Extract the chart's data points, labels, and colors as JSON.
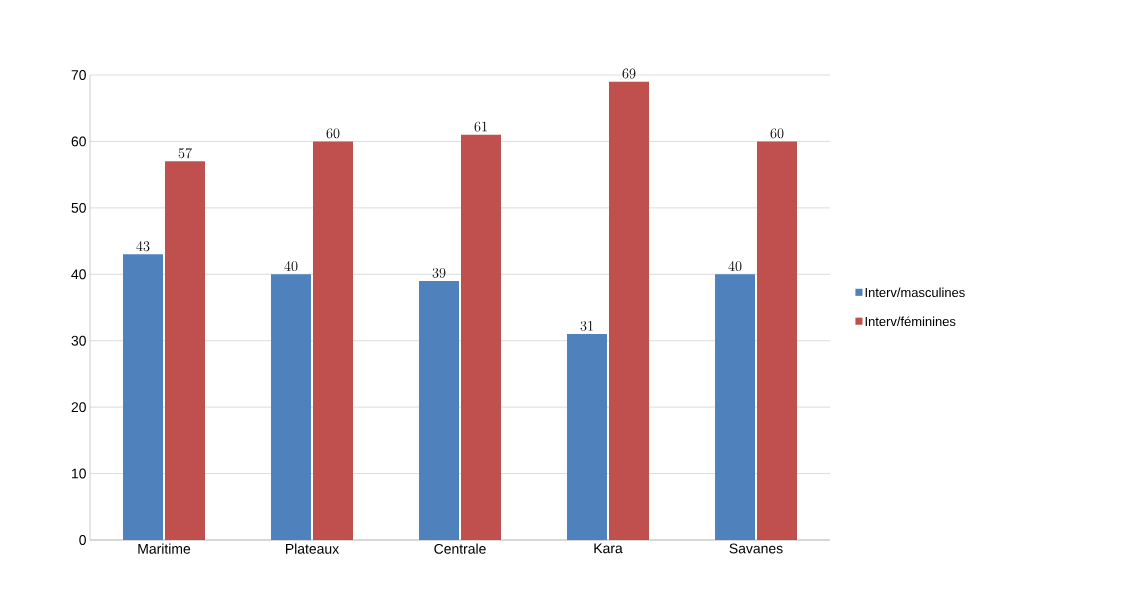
{
  "chart_data": {
    "type": "bar",
    "categories": [
      "Maritime",
      "Plateaux",
      "Centrale",
      "Kara",
      "Savanes"
    ],
    "series": [
      {
        "name": "Interv/masculines",
        "color": "#4f81bd",
        "values": [
          43,
          40,
          39,
          31,
          40
        ]
      },
      {
        "name": "Interv/féminines",
        "color": "#c0504d",
        "values": [
          57,
          60,
          61,
          69,
          60
        ]
      }
    ],
    "ylim": [
      0,
      70
    ],
    "yticks": [
      0,
      10,
      20,
      30,
      40,
      50,
      60,
      70
    ],
    "grid": "y",
    "legend": "right",
    "data_labels": true
  }
}
